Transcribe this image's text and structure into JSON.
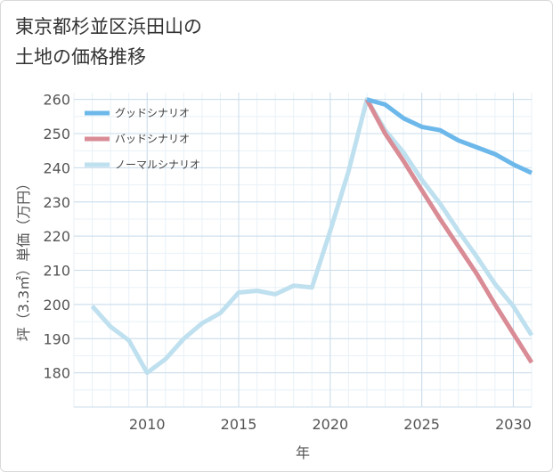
{
  "title_lines": [
    "東京都杉並区浜田山の",
    "土地の価格推移"
  ],
  "chart_data": {
    "type": "line",
    "xlabel": "年",
    "ylabel": "坪（3.3㎡）単価（万円）",
    "xlim": [
      2006,
      2031
    ],
    "ylim": [
      170,
      262
    ],
    "x_ticks": [
      2010,
      2015,
      2020,
      2025,
      2030
    ],
    "y_ticks": [
      180,
      190,
      200,
      210,
      220,
      230,
      240,
      250,
      260
    ],
    "legend_position": "top-left",
    "grid": true,
    "series": [
      {
        "name": "グッドシナリオ",
        "color": "#6cb8ea",
        "x": [
          2022,
          2023,
          2024,
          2025,
          2026,
          2027,
          2028,
          2029,
          2030,
          2031
        ],
        "y": [
          260,
          258.5,
          254.5,
          252,
          251,
          248,
          246,
          244,
          241,
          238.5
        ]
      },
      {
        "name": "バッドシナリオ",
        "color": "#d98c95",
        "x": [
          2022,
          2023,
          2024,
          2025,
          2026,
          2027,
          2028,
          2029,
          2030,
          2031
        ],
        "y": [
          260,
          250,
          242,
          233.5,
          225,
          217,
          209,
          200,
          191.5,
          183
        ]
      },
      {
        "name": "ノーマルシナリオ",
        "color": "#bfe0ef",
        "x": [
          2007,
          2008,
          2009,
          2010,
          2011,
          2012,
          2013,
          2014,
          2015,
          2016,
          2017,
          2018,
          2019,
          2020,
          2021,
          2022,
          2023,
          2024,
          2025,
          2026,
          2027,
          2028,
          2029,
          2030,
          2031
        ],
        "y": [
          199.5,
          193.5,
          189.5,
          180,
          184,
          190,
          194.5,
          197.5,
          203.5,
          204,
          203,
          205.5,
          205,
          221.5,
          239,
          260,
          251,
          244.5,
          236.5,
          229.5,
          221.5,
          214,
          206,
          199.5,
          191
        ]
      }
    ]
  }
}
